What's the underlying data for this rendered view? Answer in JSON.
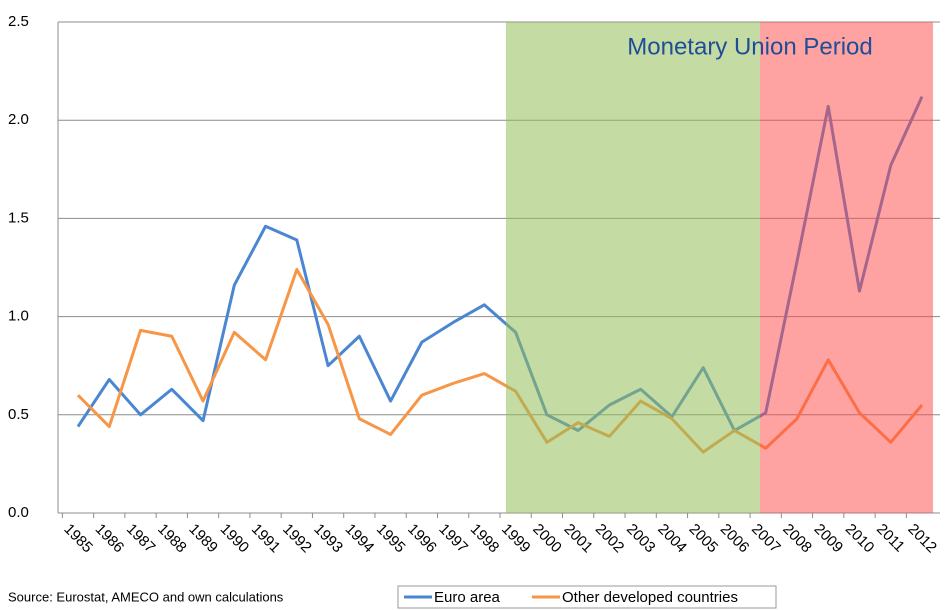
{
  "chart_data": {
    "type": "line",
    "annotation": "Monetary Union Period",
    "source": "Source: Eurostat, AMECO and own calculations",
    "categories": [
      "1985",
      "1986",
      "1987",
      "1988",
      "1989",
      "1990",
      "1991",
      "1992",
      "1993",
      "1994",
      "1995",
      "1996",
      "1997",
      "1998",
      "1999",
      "2000",
      "2001",
      "2002",
      "2003",
      "2004",
      "2005",
      "2006",
      "2007",
      "2008",
      "2009",
      "2010",
      "2011",
      "2012"
    ],
    "series": [
      {
        "name": "Euro area",
        "color": "#4a86d1",
        "values": [
          0.44,
          0.68,
          0.5,
          0.63,
          0.47,
          1.16,
          1.46,
          1.39,
          0.75,
          0.9,
          0.57,
          0.87,
          0.97,
          1.06,
          0.92,
          0.5,
          0.42,
          0.55,
          0.63,
          0.49,
          0.74,
          0.42,
          0.51,
          1.28,
          2.07,
          1.13,
          1.77,
          2.12
        ]
      },
      {
        "name": "Other developed countries",
        "color": "#f79646",
        "values": [
          0.6,
          0.44,
          0.93,
          0.9,
          0.57,
          0.92,
          0.78,
          1.24,
          0.96,
          0.48,
          0.4,
          0.6,
          0.66,
          0.71,
          0.62,
          0.36,
          0.46,
          0.39,
          0.57,
          0.48,
          0.31,
          0.42,
          0.33,
          0.48,
          0.78,
          0.51,
          0.36,
          0.55
        ]
      }
    ],
    "ylim": [
      0,
      2.5
    ],
    "yticks": [
      {
        "value": 0,
        "label": "0.0"
      },
      {
        "value": 0.5,
        "label": "0.5"
      },
      {
        "value": 1,
        "label": "1.0"
      },
      {
        "value": 1.5,
        "label": "1.5"
      },
      {
        "value": 2,
        "label": "2.0"
      },
      {
        "value": 2.5,
        "label": "2.5"
      }
    ],
    "grid": true
  }
}
